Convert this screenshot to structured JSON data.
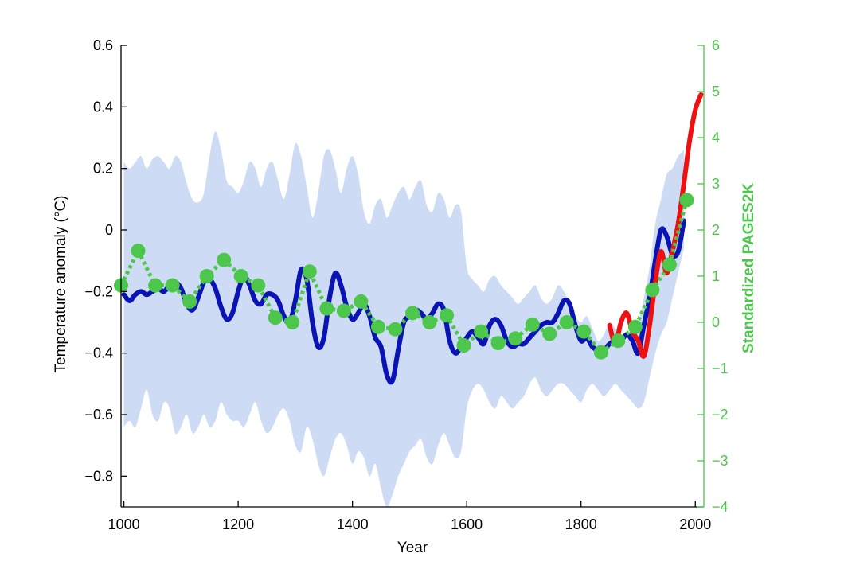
{
  "chart_data": {
    "type": "line",
    "title": "",
    "xlabel": "Year",
    "ylabel": "Temperature anomaly (°C)",
    "y2label": "Standardized PAGES2K",
    "xlim": [
      995,
      2015
    ],
    "ylim": [
      -0.9,
      0.6
    ],
    "y2lim": [
      -4,
      6
    ],
    "xticks": [
      1000,
      1200,
      1400,
      1600,
      1800,
      2000
    ],
    "yticks": [
      -0.8,
      -0.6,
      -0.4,
      -0.2,
      0,
      0.2,
      0.4,
      0.6
    ],
    "ytick_labels": [
      "−0.8",
      "−0.6",
      "−0.4",
      "−0.2",
      "0",
      "0.2",
      "0.4",
      "0.6"
    ],
    "y2ticks": [
      -4,
      -3,
      -2,
      -1,
      0,
      1,
      2,
      3,
      4,
      5,
      6
    ],
    "y2tick_labels": [
      "−4",
      "−3",
      "−2",
      "−1",
      "0",
      "1",
      "2",
      "3",
      "4",
      "5",
      "6"
    ],
    "grid": false,
    "colors": {
      "reconstruction": "#0a14b4",
      "uncertainty": "#cddcf4",
      "instrumental": "#ee1111",
      "pages2k": "#4cc74c",
      "axis": "#000000"
    },
    "uncertainty_band": {
      "x": [
        1000,
        1010,
        1020,
        1030,
        1040,
        1050,
        1060,
        1070,
        1080,
        1090,
        1100,
        1110,
        1120,
        1130,
        1140,
        1150,
        1160,
        1170,
        1180,
        1190,
        1200,
        1210,
        1220,
        1230,
        1240,
        1250,
        1260,
        1270,
        1280,
        1290,
        1300,
        1310,
        1320,
        1330,
        1340,
        1350,
        1360,
        1370,
        1380,
        1390,
        1400,
        1410,
        1420,
        1430,
        1440,
        1450,
        1460,
        1470,
        1480,
        1490,
        1500,
        1510,
        1520,
        1530,
        1540,
        1550,
        1560,
        1570,
        1580,
        1590,
        1600,
        1610,
        1620,
        1630,
        1640,
        1650,
        1660,
        1670,
        1680,
        1690,
        1700,
        1710,
        1720,
        1730,
        1740,
        1750,
        1760,
        1770,
        1780,
        1790,
        1800,
        1810,
        1820,
        1830,
        1840,
        1850,
        1860,
        1870,
        1880,
        1890,
        1900,
        1910,
        1920,
        1930,
        1940,
        1950,
        1960,
        1970,
        1980
      ],
      "upper": [
        0.22,
        0.2,
        0.22,
        0.24,
        0.2,
        0.23,
        0.24,
        0.22,
        0.2,
        0.24,
        0.22,
        0.15,
        0.1,
        0.09,
        0.12,
        0.24,
        0.32,
        0.26,
        0.16,
        0.14,
        0.12,
        0.16,
        0.22,
        0.2,
        0.14,
        0.2,
        0.22,
        0.16,
        0.1,
        0.18,
        0.28,
        0.24,
        0.14,
        0.04,
        0.12,
        0.24,
        0.26,
        0.2,
        0.12,
        0.2,
        0.24,
        0.18,
        0.06,
        0.02,
        0.08,
        0.1,
        0.04,
        0.08,
        0.12,
        0.14,
        0.1,
        0.14,
        0.16,
        0.08,
        0.06,
        0.12,
        0.1,
        0.04,
        0.08,
        0.06,
        -0.12,
        -0.16,
        -0.18,
        -0.2,
        -0.16,
        -0.15,
        -0.18,
        -0.2,
        -0.22,
        -0.24,
        -0.22,
        -0.2,
        -0.18,
        -0.22,
        -0.24,
        -0.22,
        -0.18,
        -0.2,
        -0.24,
        -0.28,
        -0.3,
        -0.28,
        -0.32,
        -0.36,
        -0.34,
        -0.3,
        -0.32,
        -0.34,
        -0.36,
        -0.3,
        -0.3,
        -0.22,
        -0.12,
        0.02,
        0.1,
        0.18,
        0.2,
        0.24,
        0.26
      ],
      "lower": [
        -0.64,
        -0.62,
        -0.64,
        -0.58,
        -0.52,
        -0.6,
        -0.62,
        -0.56,
        -0.58,
        -0.66,
        -0.64,
        -0.6,
        -0.66,
        -0.64,
        -0.6,
        -0.64,
        -0.62,
        -0.56,
        -0.6,
        -0.62,
        -0.62,
        -0.64,
        -0.6,
        -0.56,
        -0.62,
        -0.66,
        -0.64,
        -0.6,
        -0.58,
        -0.62,
        -0.7,
        -0.72,
        -0.64,
        -0.68,
        -0.76,
        -0.8,
        -0.74,
        -0.68,
        -0.66,
        -0.7,
        -0.76,
        -0.72,
        -0.74,
        -0.8,
        -0.76,
        -0.84,
        -0.9,
        -0.86,
        -0.8,
        -0.76,
        -0.72,
        -0.7,
        -0.68,
        -0.74,
        -0.76,
        -0.7,
        -0.66,
        -0.7,
        -0.74,
        -0.72,
        -0.58,
        -0.52,
        -0.5,
        -0.52,
        -0.56,
        -0.58,
        -0.54,
        -0.56,
        -0.58,
        -0.56,
        -0.54,
        -0.5,
        -0.48,
        -0.52,
        -0.54,
        -0.52,
        -0.5,
        -0.5,
        -0.52,
        -0.54,
        -0.56,
        -0.52,
        -0.5,
        -0.52,
        -0.54,
        -0.52,
        -0.5,
        -0.52,
        -0.54,
        -0.56,
        -0.58,
        -0.56,
        -0.48,
        -0.4,
        -0.34,
        -0.3,
        -0.22,
        -0.14,
        -0.06
      ]
    },
    "series": [
      {
        "axis": "left",
        "style": "solid-thick",
        "color": "#0a14b4",
        "x": [
          1000,
          1010,
          1020,
          1030,
          1040,
          1050,
          1060,
          1070,
          1080,
          1090,
          1100,
          1110,
          1120,
          1130,
          1140,
          1150,
          1160,
          1170,
          1180,
          1190,
          1200,
          1210,
          1220,
          1230,
          1240,
          1250,
          1260,
          1270,
          1280,
          1290,
          1300,
          1310,
          1320,
          1330,
          1340,
          1350,
          1360,
          1370,
          1380,
          1390,
          1400,
          1410,
          1420,
          1430,
          1440,
          1450,
          1460,
          1470,
          1480,
          1490,
          1500,
          1510,
          1520,
          1530,
          1540,
          1550,
          1560,
          1570,
          1580,
          1590,
          1600,
          1610,
          1620,
          1630,
          1640,
          1650,
          1660,
          1670,
          1680,
          1690,
          1700,
          1710,
          1720,
          1730,
          1740,
          1750,
          1760,
          1770,
          1780,
          1790,
          1800,
          1810,
          1820,
          1830,
          1840,
          1850,
          1860,
          1870,
          1880,
          1890,
          1900,
          1910,
          1920,
          1930,
          1940,
          1950,
          1960,
          1970,
          1980
        ],
        "values": [
          -0.21,
          -0.23,
          -0.21,
          -0.2,
          -0.21,
          -0.2,
          -0.19,
          -0.2,
          -0.18,
          -0.17,
          -0.19,
          -0.24,
          -0.26,
          -0.22,
          -0.17,
          -0.16,
          -0.19,
          -0.25,
          -0.29,
          -0.27,
          -0.2,
          -0.15,
          -0.18,
          -0.23,
          -0.24,
          -0.21,
          -0.21,
          -0.23,
          -0.28,
          -0.3,
          -0.23,
          -0.13,
          -0.16,
          -0.3,
          -0.38,
          -0.35,
          -0.22,
          -0.14,
          -0.18,
          -0.25,
          -0.29,
          -0.27,
          -0.24,
          -0.28,
          -0.35,
          -0.38,
          -0.47,
          -0.49,
          -0.39,
          -0.3,
          -0.28,
          -0.26,
          -0.27,
          -0.29,
          -0.27,
          -0.24,
          -0.26,
          -0.36,
          -0.4,
          -0.38,
          -0.35,
          -0.33,
          -0.35,
          -0.37,
          -0.31,
          -0.29,
          -0.31,
          -0.36,
          -0.38,
          -0.37,
          -0.37,
          -0.35,
          -0.33,
          -0.31,
          -0.3,
          -0.3,
          -0.27,
          -0.23,
          -0.24,
          -0.31,
          -0.36,
          -0.35,
          -0.38,
          -0.39,
          -0.39,
          -0.37,
          -0.36,
          -0.36,
          -0.34,
          -0.36,
          -0.4,
          -0.31,
          -0.22,
          -0.1,
          0.0,
          -0.02,
          -0.08,
          -0.07,
          0.03
        ]
      },
      {
        "axis": "left",
        "style": "solid-thick",
        "color": "#ee1111",
        "x": [
          1850,
          1860,
          1870,
          1880,
          1890,
          1900,
          1910,
          1920,
          1930,
          1940,
          1950,
          1960,
          1970,
          1980,
          1990,
          2000,
          2010
        ],
        "values": [
          -0.31,
          -0.37,
          -0.3,
          -0.27,
          -0.33,
          -0.36,
          -0.41,
          -0.31,
          -0.17,
          -0.07,
          -0.14,
          -0.07,
          0.02,
          0.15,
          0.29,
          0.39,
          0.44
        ]
      },
      {
        "axis": "right",
        "style": "dotted-markers",
        "color": "#4cc74c",
        "x": [
          995,
          1025,
          1055,
          1085,
          1115,
          1145,
          1175,
          1205,
          1235,
          1265,
          1295,
          1325,
          1355,
          1385,
          1415,
          1445,
          1475,
          1505,
          1535,
          1565,
          1595,
          1625,
          1655,
          1685,
          1715,
          1745,
          1775,
          1805,
          1835,
          1865,
          1895,
          1925,
          1955,
          1985
        ],
        "values": [
          0.8,
          1.55,
          0.8,
          0.8,
          0.45,
          1.0,
          1.35,
          1.0,
          0.8,
          0.1,
          0.0,
          1.1,
          0.3,
          0.25,
          0.45,
          -0.1,
          -0.15,
          0.2,
          0.0,
          0.15,
          -0.5,
          -0.2,
          -0.45,
          -0.35,
          -0.05,
          -0.25,
          0.0,
          -0.2,
          -0.65,
          -0.4,
          -0.1,
          0.7,
          1.25,
          2.65
        ]
      }
    ]
  }
}
